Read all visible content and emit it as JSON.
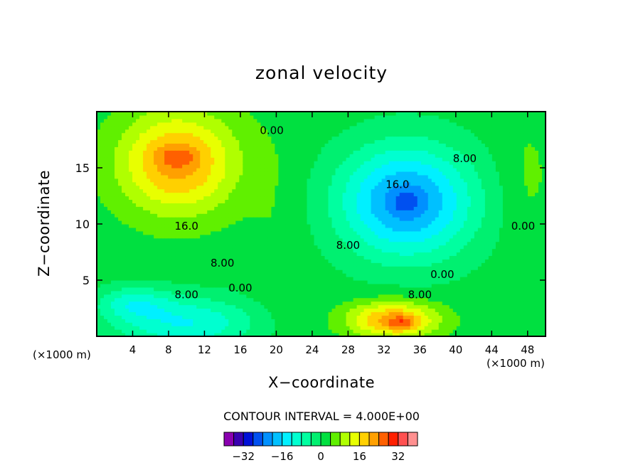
{
  "chart_data": {
    "type": "heatmap",
    "title": "zonal velocity",
    "xlabel": "X−coordinate",
    "ylabel": "Z−coordinate",
    "x_unit_label": "(×1000 m)",
    "xlim": [
      0,
      50
    ],
    "ylim": [
      0,
      20
    ],
    "x_ticks": [
      4,
      8,
      12,
      16,
      20,
      24,
      28,
      32,
      36,
      40,
      44,
      48
    ],
    "y_ticks": [
      5,
      10,
      15
    ],
    "contour_interval_label": "CONTOUR INTERVAL = 4.000E+00",
    "contour_interval": 4.0,
    "contour_labels": [
      "16.0",
      "8.00",
      "0.00",
      "8.00",
      "0.00",
      "16.0",
      "8.00",
      "8.00",
      "0.00",
      "8.00",
      "0.00"
    ],
    "features": [
      {
        "x": 9,
        "y": 16,
        "value": 22
      },
      {
        "x": 34,
        "y": 12,
        "value": -22
      },
      {
        "x": 34,
        "y": 1.2,
        "value": 26
      },
      {
        "x": 10,
        "y": 0.5,
        "value": -16
      },
      {
        "x": 20,
        "y": 10,
        "value": 2
      }
    ],
    "colorbar": {
      "levels": [
        -36,
        -32,
        -28,
        -24,
        -20,
        -16,
        -12,
        -8,
        -4,
        0,
        4,
        8,
        12,
        16,
        20,
        24,
        28,
        32,
        36
      ],
      "tick_labels": [
        "−32",
        "−16",
        "0",
        "16",
        "32"
      ],
      "tick_values": [
        -32,
        -16,
        0,
        16,
        32
      ],
      "colors": [
        "#8a00b0",
        "#3a00b0",
        "#0010d8",
        "#0050f0",
        "#0090ff",
        "#00c0ff",
        "#00f0ff",
        "#00ffd0",
        "#00ffa0",
        "#00f070",
        "#00e040",
        "#60f000",
        "#b0ff00",
        "#e8ff00",
        "#ffd000",
        "#ffa000",
        "#ff6000",
        "#ff2000",
        "#ff5050",
        "#ff9090"
      ]
    }
  }
}
